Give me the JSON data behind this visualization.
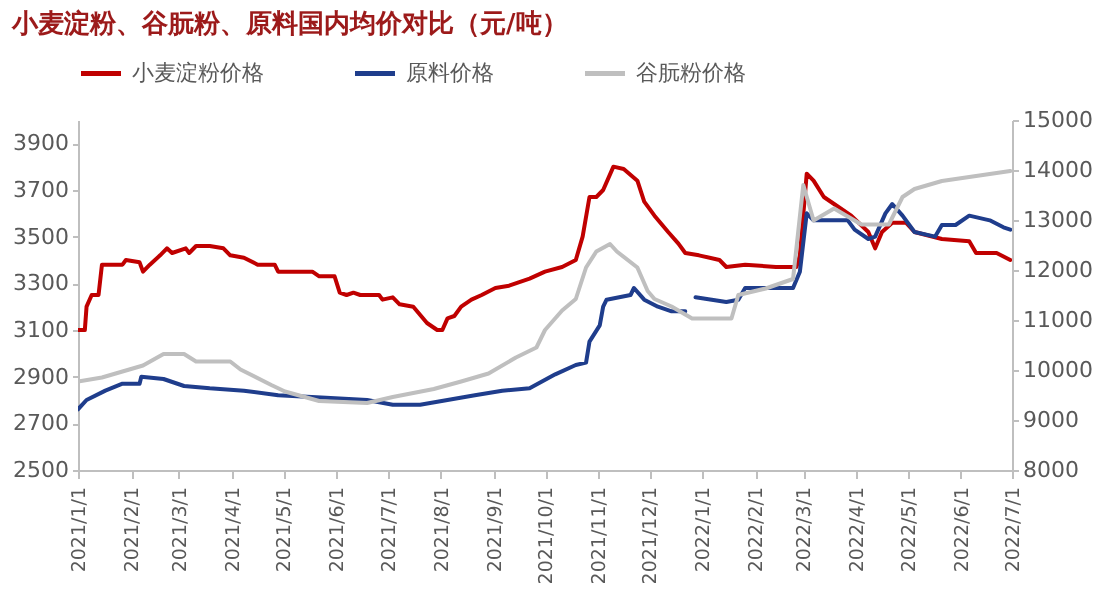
{
  "chart_data": {
    "type": "line",
    "title": "小麦淀粉、谷朊粉、原料国内均价对比（元/吨）",
    "legend": "top",
    "xlim": [
      "2021-01-01",
      "2022-07-01"
    ],
    "xticks": [
      {
        "value": "2021-01-01",
        "label": "2021/1/1"
      },
      {
        "value": "2021-02-01",
        "label": "2021/2/1"
      },
      {
        "value": "2021-03-01",
        "label": "2021/3/1"
      },
      {
        "value": "2021-04-01",
        "label": "2021/4/1"
      },
      {
        "value": "2021-05-01",
        "label": "2021/5/1"
      },
      {
        "value": "2021-06-01",
        "label": "2021/6/1"
      },
      {
        "value": "2021-07-01",
        "label": "2021/7/1"
      },
      {
        "value": "2021-08-01",
        "label": "2021/8/1"
      },
      {
        "value": "2021-09-01",
        "label": "2021/9/1"
      },
      {
        "value": "2021-10-01",
        "label": "2021/10/1"
      },
      {
        "value": "2021-11-01",
        "label": "2021/11/1"
      },
      {
        "value": "2021-12-01",
        "label": "2021/12/1"
      },
      {
        "value": "2022-01-01",
        "label": "2022/1/1"
      },
      {
        "value": "2022-02-01",
        "label": "2022/2/1"
      },
      {
        "value": "2022-03-01",
        "label": "2022/3/1"
      },
      {
        "value": "2022-04-01",
        "label": "2022/4/1"
      },
      {
        "value": "2022-05-01",
        "label": "2022/5/1"
      },
      {
        "value": "2022-06-01",
        "label": "2022/6/1"
      },
      {
        "value": "2022-07-01",
        "label": "2022/7/1"
      }
    ],
    "ylim": [
      2500,
      4000
    ],
    "yticks": [
      2500,
      2700,
      2900,
      3100,
      3300,
      3500,
      3700,
      3900
    ],
    "y2lim": [
      8000,
      15000
    ],
    "y2ticks": [
      8000,
      9000,
      10000,
      11000,
      12000,
      13000,
      14000,
      15000
    ],
    "series": [
      {
        "name": "小麦淀粉价格",
        "color": "#c00000",
        "x": [
          "2021-01-01",
          "2021-01-05",
          "2021-01-06",
          "2021-01-09",
          "2021-01-13",
          "2021-01-15",
          "2021-01-27",
          "2021-01-29",
          "2021-02-06",
          "2021-02-08",
          "2021-02-12",
          "2021-02-18",
          "2021-02-22",
          "2021-02-25",
          "2021-03-05",
          "2021-03-07",
          "2021-03-11",
          "2021-03-19",
          "2021-03-27",
          "2021-03-31",
          "2021-04-08",
          "2021-04-16",
          "2021-04-26",
          "2021-04-28",
          "2021-05-18",
          "2021-05-22",
          "2021-05-31",
          "2021-06-03",
          "2021-06-07",
          "2021-06-11",
          "2021-06-15",
          "2021-06-26",
          "2021-06-28",
          "2021-07-04",
          "2021-07-08",
          "2021-07-16",
          "2021-07-24",
          "2021-07-30",
          "2021-08-02",
          "2021-08-05",
          "2021-08-09",
          "2021-08-13",
          "2021-08-19",
          "2021-08-25",
          "2021-09-02",
          "2021-09-10",
          "2021-09-22",
          "2021-10-01",
          "2021-10-11",
          "2021-10-19",
          "2021-10-23",
          "2021-10-27",
          "2021-10-31",
          "2021-11-04",
          "2021-11-10",
          "2021-11-16",
          "2021-11-24",
          "2021-11-28",
          "2021-12-04",
          "2021-12-12",
          "2021-12-18",
          "2021-12-22",
          "2021-12-30",
          "2022-01-11",
          "2022-01-15",
          "2022-01-26",
          "2022-02-13",
          "2022-02-25",
          "2022-02-27",
          "2022-03-03",
          "2022-03-07",
          "2022-03-13",
          "2022-03-19",
          "2022-03-29",
          "2022-04-08",
          "2022-04-12",
          "2022-04-16",
          "2022-04-22",
          "2022-04-30",
          "2022-05-05",
          "2022-05-21",
          "2022-06-06",
          "2022-06-10",
          "2022-06-22",
          "2022-06-30"
        ],
        "values": [
          3100,
          3100,
          3200,
          3250,
          3250,
          3380,
          3380,
          3400,
          3390,
          3350,
          3380,
          3420,
          3450,
          3430,
          3450,
          3430,
          3460,
          3460,
          3450,
          3420,
          3410,
          3380,
          3380,
          3350,
          3350,
          3330,
          3330,
          3260,
          3250,
          3260,
          3250,
          3250,
          3230,
          3240,
          3210,
          3200,
          3130,
          3100,
          3100,
          3150,
          3160,
          3200,
          3230,
          3250,
          3280,
          3290,
          3320,
          3350,
          3370,
          3400,
          3500,
          3670,
          3670,
          3700,
          3800,
          3790,
          3740,
          3650,
          3590,
          3520,
          3470,
          3430,
          3420,
          3400,
          3370,
          3380,
          3370,
          3370,
          3420,
          3770,
          3740,
          3670,
          3640,
          3590,
          3520,
          3450,
          3520,
          3560,
          3560,
          3520,
          3490,
          3480,
          3430,
          3430,
          3400
        ]
      },
      {
        "name": "原料价格",
        "color": "#1f3d8c",
        "x": [
          "2021-01-01",
          "2021-01-06",
          "2021-01-17",
          "2021-01-27",
          "2021-02-06",
          "2021-02-07",
          "2021-02-20",
          "2021-03-04",
          "2021-03-19",
          "2021-04-08",
          "2021-04-28",
          "2021-05-26",
          "2021-06-19",
          "2021-07-04",
          "2021-07-20",
          "2021-08-05",
          "2021-08-21",
          "2021-09-06",
          "2021-09-22",
          "2021-10-07",
          "2021-10-19",
          "2021-10-25",
          "2021-10-27",
          "2021-11-02",
          "2021-11-04",
          "2021-11-06",
          "2021-11-20",
          "2021-11-22",
          "2021-11-28",
          "2021-12-06",
          "2021-12-14",
          "2021-12-22",
          "2021-12-25",
          "2021-12-28",
          "2022-01-15",
          "2022-01-22",
          "2022-01-26",
          "2022-02-23",
          "2022-02-27",
          "2022-03-03",
          "2022-03-07",
          "2022-03-27",
          "2022-03-31",
          "2022-04-08",
          "2022-04-12",
          "2022-04-18",
          "2022-04-22",
          "2022-04-28",
          "2022-05-05",
          "2022-05-17",
          "2022-05-21",
          "2022-05-29",
          "2022-06-06",
          "2022-06-18",
          "2022-06-26",
          "2022-06-30"
        ],
        "values": [
          2760,
          2800,
          2840,
          2870,
          2870,
          2900,
          2890,
          2860,
          2850,
          2840,
          2820,
          2810,
          2800,
          2780,
          2780,
          2800,
          2820,
          2840,
          2850,
          2910,
          2950,
          2960,
          3050,
          3120,
          3200,
          3230,
          3250,
          3280,
          3230,
          3200,
          3180,
          3180,
          null,
          3240,
          3220,
          3230,
          3280,
          3280,
          3350,
          3600,
          3570,
          3570,
          3530,
          3490,
          3500,
          3600,
          3640,
          3590,
          3520,
          3500,
          3550,
          3550,
          3590,
          3570,
          3540,
          3530
        ]
      },
      {
        "name": "谷朊粉价格",
        "color": "#bfbfbf",
        "axis": "y2",
        "x": [
          "2021-01-01",
          "2021-01-15",
          "2021-01-23",
          "2021-02-08",
          "2021-02-20",
          "2021-03-04",
          "2021-03-11",
          "2021-03-31",
          "2021-04-06",
          "2021-04-24",
          "2021-05-02",
          "2021-05-22",
          "2021-06-19",
          "2021-07-04",
          "2021-07-28",
          "2021-08-13",
          "2021-08-29",
          "2021-09-14",
          "2021-09-26",
          "2021-10-01",
          "2021-10-11",
          "2021-10-19",
          "2021-10-25",
          "2021-10-31",
          "2021-11-08",
          "2021-11-12",
          "2021-11-24",
          "2021-11-30",
          "2021-12-04",
          "2021-12-14",
          "2021-12-26",
          "2022-01-18",
          "2022-01-22",
          "2022-02-07",
          "2022-02-23",
          "2022-03-01",
          "2022-03-07",
          "2022-03-19",
          "2022-04-04",
          "2022-04-20",
          "2022-04-28",
          "2022-05-05",
          "2022-05-21",
          "2022-06-06",
          "2022-06-30"
        ],
        "values": [
          9770,
          9850,
          9930,
          10090,
          10320,
          10320,
          10170,
          10170,
          10010,
          9700,
          9570,
          9380,
          9340,
          9460,
          9620,
          9770,
          9930,
          10250,
          10450,
          10800,
          11190,
          11420,
          12050,
          12370,
          12520,
          12370,
          12050,
          11580,
          11420,
          11270,
          11030,
          11030,
          11500,
          11630,
          11820,
          13700,
          12990,
          13230,
          12910,
          12910,
          13460,
          13620,
          13780,
          13860,
          13980
        ]
      }
    ]
  }
}
